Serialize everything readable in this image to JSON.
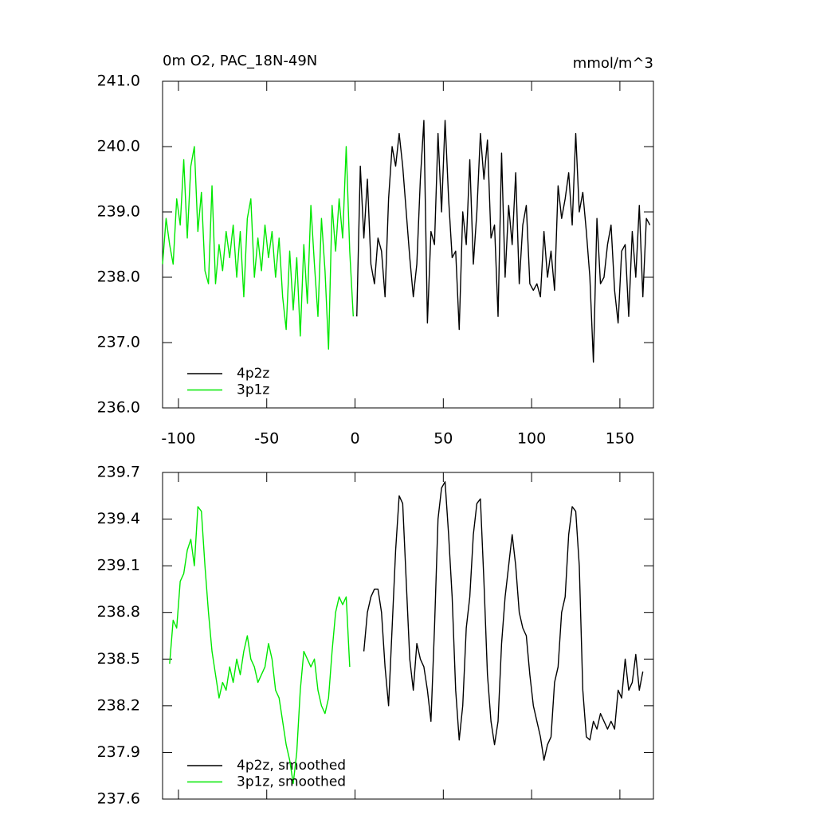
{
  "chart_data": [
    {
      "type": "line",
      "title": "0m O2, PAC_18N-49N",
      "units": "mmol/m^3",
      "xlim": [
        -109,
        169
      ],
      "xticks": [
        -100,
        -50,
        0,
        50,
        100,
        150
      ],
      "ylim": [
        236,
        241
      ],
      "yticks": [
        {
          "value": 236,
          "label": "236.0"
        },
        {
          "value": 237,
          "label": "237.0"
        },
        {
          "value": 238,
          "label": "238.0"
        },
        {
          "value": 239,
          "label": "239.0"
        },
        {
          "value": 240,
          "label": "240.0"
        },
        {
          "value": 241,
          "label": "241.0"
        }
      ],
      "series": [
        {
          "name": "4p2z",
          "color": "#000000",
          "x": [
            1,
            3,
            5,
            7,
            9,
            11,
            13,
            15,
            17,
            19,
            21,
            23,
            25,
            27,
            29,
            31,
            33,
            35,
            37,
            39,
            41,
            43,
            45,
            47,
            49,
            51,
            53,
            55,
            57,
            59,
            61,
            63,
            65,
            67,
            69,
            71,
            73,
            75,
            77,
            79,
            81,
            83,
            85,
            87,
            89,
            91,
            93,
            95,
            97,
            99,
            101,
            103,
            105,
            107,
            109,
            111,
            113,
            115,
            117,
            119,
            121,
            123,
            125,
            127,
            129,
            131,
            133,
            135,
            137,
            139,
            141,
            143,
            145,
            147,
            149,
            151,
            153,
            155,
            157,
            159,
            161,
            163,
            165,
            167
          ],
          "values": [
            237.4,
            239.7,
            238.6,
            239.5,
            238.2,
            237.9,
            238.6,
            238.4,
            237.7,
            239.2,
            240.0,
            239.7,
            240.2,
            239.7,
            239.0,
            238.3,
            237.7,
            238.2,
            239.5,
            240.4,
            237.3,
            238.7,
            238.5,
            240.2,
            239.0,
            240.4,
            239.2,
            238.3,
            238.4,
            237.2,
            239.0,
            238.5,
            239.8,
            238.2,
            239.0,
            240.2,
            239.5,
            240.1,
            238.6,
            238.8,
            237.4,
            239.9,
            238.0,
            239.1,
            238.5,
            239.6,
            237.9,
            238.8,
            239.1,
            237.9,
            237.8,
            237.9,
            237.7,
            238.7,
            238.0,
            238.4,
            237.8,
            239.4,
            238.9,
            239.2,
            239.6,
            238.8,
            240.2,
            239.0,
            239.3,
            238.7,
            238.0,
            236.7,
            238.9,
            237.9,
            238.0,
            238.5,
            238.8,
            237.8,
            237.3,
            238.4,
            238.5,
            237.4,
            238.7,
            238.0,
            239.1,
            237.7,
            238.9,
            238.8
          ]
        },
        {
          "name": "3p1z",
          "color": "#00e800",
          "x": [
            -109,
            -107,
            -105,
            -103,
            -101,
            -99,
            -97,
            -95,
            -93,
            -91,
            -89,
            -87,
            -85,
            -83,
            -81,
            -79,
            -77,
            -75,
            -73,
            -71,
            -69,
            -67,
            -65,
            -63,
            -61,
            -59,
            -57,
            -55,
            -53,
            -51,
            -49,
            -47,
            -45,
            -43,
            -41,
            -39,
            -37,
            -35,
            -33,
            -31,
            -29,
            -27,
            -25,
            -23,
            -21,
            -19,
            -17,
            -15,
            -13,
            -11,
            -9,
            -7,
            -5,
            -3,
            -1
          ],
          "values": [
            238.2,
            238.9,
            238.5,
            238.2,
            239.2,
            238.8,
            239.8,
            238.6,
            239.7,
            240.0,
            238.7,
            239.3,
            238.1,
            237.9,
            239.4,
            237.9,
            238.5,
            238.1,
            238.7,
            238.3,
            238.8,
            238.0,
            238.7,
            237.7,
            238.9,
            239.2,
            238.0,
            238.6,
            238.1,
            238.8,
            238.3,
            238.7,
            238.0,
            238.6,
            237.7,
            237.2,
            238.4,
            237.5,
            238.3,
            237.1,
            238.5,
            237.6,
            239.1,
            238.2,
            237.4,
            238.9,
            238.1,
            236.9,
            239.1,
            238.4,
            239.2,
            238.6,
            240.0,
            238.4,
            237.4
          ]
        }
      ]
    },
    {
      "type": "line",
      "xlim": [
        -109,
        169
      ],
      "xticks": [
        -100,
        -50,
        0,
        50,
        100,
        150
      ],
      "ylim": [
        237.6,
        239.7
      ],
      "yticks": [
        237.6,
        237.9,
        238.2,
        238.5,
        238.8,
        239.1,
        239.4,
        239.7
      ],
      "series": [
        {
          "name": "4p2z, smoothed",
          "color": "#000000",
          "x": [
            5,
            7,
            9,
            11,
            13,
            15,
            17,
            19,
            21,
            23,
            25,
            27,
            29,
            31,
            33,
            35,
            37,
            39,
            41,
            43,
            45,
            47,
            49,
            51,
            53,
            55,
            57,
            59,
            61,
            63,
            65,
            67,
            69,
            71,
            73,
            75,
            77,
            79,
            81,
            83,
            85,
            87,
            89,
            91,
            93,
            95,
            97,
            99,
            101,
            103,
            105,
            107,
            109,
            111,
            113,
            115,
            117,
            119,
            121,
            123,
            125,
            127,
            129,
            131,
            133,
            135,
            137,
            139,
            141,
            143,
            145,
            147,
            149,
            151,
            153,
            155,
            157,
            159,
            161,
            163
          ],
          "values": [
            238.55,
            238.8,
            238.9,
            238.95,
            238.95,
            238.8,
            238.45,
            238.2,
            238.7,
            239.2,
            239.55,
            239.5,
            239.0,
            238.5,
            238.3,
            238.6,
            238.5,
            238.45,
            238.3,
            238.1,
            238.7,
            239.4,
            239.6,
            239.64,
            239.3,
            238.9,
            238.3,
            237.98,
            238.2,
            238.7,
            238.9,
            239.3,
            239.5,
            239.53,
            239.0,
            238.4,
            238.1,
            237.95,
            238.1,
            238.6,
            238.9,
            239.1,
            239.3,
            239.1,
            238.8,
            238.7,
            238.65,
            238.4,
            238.2,
            238.1,
            238.0,
            237.85,
            237.95,
            238.0,
            238.35,
            238.45,
            238.8,
            238.9,
            239.3,
            239.48,
            239.45,
            239.1,
            238.3,
            238.0,
            237.98,
            238.1,
            238.05,
            238.15,
            238.1,
            238.05,
            238.1,
            238.05,
            238.3,
            238.25,
            238.5,
            238.3,
            238.35,
            238.53,
            238.3,
            238.42
          ]
        },
        {
          "name": "3p1z, smoothed",
          "color": "#00e800",
          "x": [
            -105,
            -103,
            -101,
            -99,
            -97,
            -95,
            -93,
            -91,
            -89,
            -87,
            -85,
            -83,
            -81,
            -79,
            -77,
            -75,
            -73,
            -71,
            -69,
            -67,
            -65,
            -63,
            -61,
            -59,
            -57,
            -55,
            -53,
            -51,
            -49,
            -47,
            -45,
            -43,
            -41,
            -39,
            -37,
            -35,
            -33,
            -31,
            -29,
            -27,
            -25,
            -23,
            -21,
            -19,
            -17,
            -15,
            -13,
            -11,
            -9,
            -7,
            -5,
            -3
          ],
          "values": [
            238.47,
            238.75,
            238.7,
            239.0,
            239.05,
            239.2,
            239.27,
            239.1,
            239.48,
            239.45,
            239.1,
            238.8,
            238.55,
            238.4,
            238.25,
            238.35,
            238.3,
            238.45,
            238.35,
            238.5,
            238.4,
            238.55,
            238.65,
            238.5,
            238.45,
            238.35,
            238.4,
            238.45,
            238.6,
            238.5,
            238.3,
            238.25,
            238.1,
            237.95,
            237.85,
            237.7,
            237.9,
            238.3,
            238.55,
            238.5,
            238.45,
            238.5,
            238.3,
            238.2,
            238.15,
            238.25,
            238.55,
            238.8,
            238.9,
            238.85,
            238.9,
            238.45
          ]
        }
      ]
    }
  ]
}
